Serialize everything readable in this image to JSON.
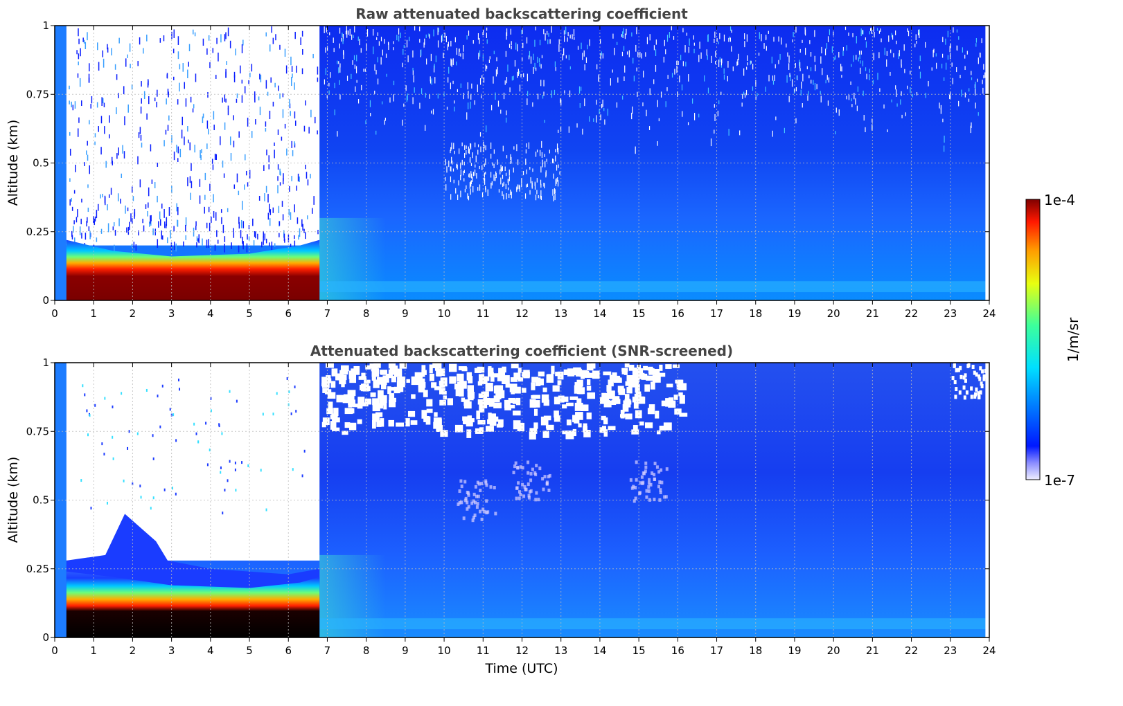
{
  "chart_data": [
    {
      "type": "heatmap",
      "title": "Raw attenuated backscattering coefficient",
      "xlabel": "",
      "ylabel": "Altitude (km)",
      "xlim": [
        0,
        24
      ],
      "ylim": [
        0,
        1
      ],
      "x_ticks": [
        "0",
        "1",
        "2",
        "3",
        "4",
        "5",
        "6",
        "7",
        "8",
        "9",
        "10",
        "11",
        "12",
        "13",
        "14",
        "15",
        "16",
        "17",
        "18",
        "19",
        "20",
        "21",
        "22",
        "23",
        "24"
      ],
      "y_ticks": [
        "0",
        "0.25",
        "0.5",
        "0.75",
        "1"
      ],
      "grid": true,
      "regions": [
        {
          "time_utc": [
            0.3,
            6.8
          ],
          "altitude_km": [
            0,
            0.12
          ],
          "level": "max (dark red, ~1e-4)"
        },
        {
          "time_utc": [
            0.3,
            6.8
          ],
          "altitude_km": [
            0.12,
            0.2
          ],
          "level": "high (red to green)"
        },
        {
          "time_utc": [
            0.4,
            6.8
          ],
          "altitude_km": [
            0.3,
            1.0
          ],
          "level": "noisy / mostly empty"
        },
        {
          "time_utc": [
            6.8,
            24
          ],
          "altitude_km": [
            0,
            0.3
          ],
          "level": "light blue"
        },
        {
          "time_utc": [
            6.8,
            24
          ],
          "altitude_km": [
            0.3,
            1.0
          ],
          "level": "blue, noisy above 0.6 km"
        }
      ]
    },
    {
      "type": "heatmap",
      "title": "Attenuated backscattering coefficient (SNR-screened)",
      "xlabel": "Time (UTC)",
      "ylabel": "Altitude (km)",
      "xlim": [
        0,
        24
      ],
      "ylim": [
        0,
        1
      ],
      "x_ticks": [
        "0",
        "1",
        "2",
        "3",
        "4",
        "5",
        "6",
        "7",
        "8",
        "9",
        "10",
        "11",
        "12",
        "13",
        "14",
        "15",
        "16",
        "17",
        "18",
        "19",
        "20",
        "21",
        "22",
        "23",
        "24"
      ],
      "y_ticks": [
        "0",
        "0.25",
        "0.5",
        "0.75",
        "1"
      ],
      "grid": true,
      "regions": [
        {
          "time_utc": [
            0.3,
            6.8
          ],
          "altitude_km": [
            0,
            0.12
          ],
          "level": "saturated (black)"
        },
        {
          "time_utc": [
            0.3,
            6.8
          ],
          "altitude_km": [
            0.12,
            0.25
          ],
          "level": "high (red to blue)"
        },
        {
          "time_utc": [
            0.4,
            6.8
          ],
          "altitude_km": [
            0.3,
            1.0
          ],
          "level": "screened out (white)"
        },
        {
          "time_utc": [
            6.8,
            16
          ],
          "altitude_km": [
            0.75,
            1.0
          ],
          "level": "partially screened out"
        },
        {
          "time_utc": [
            6.8,
            24
          ],
          "altitude_km": [
            0,
            0.75
          ],
          "level": "blue"
        }
      ]
    }
  ],
  "colorbar": {
    "label": "1/m/sr",
    "max_label": "1e-4",
    "min_label": "1e-7",
    "scale": "log",
    "range": [
      1e-07,
      0.0001
    ],
    "colors": [
      "#eeeeff",
      "#0018ff",
      "#0096ff",
      "#00e0ff",
      "#3cff9c",
      "#e8ff10",
      "#ff9a00",
      "#ff1800",
      "#800000"
    ]
  }
}
